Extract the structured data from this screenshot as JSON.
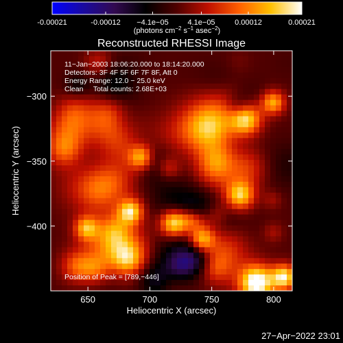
{
  "chart_data": {
    "type": "heatmap",
    "title": "Reconstructed RHESSI Image",
    "xlabel": "Heliocentric X (arcsec)",
    "ylabel": "Heliocentric Y (arcsec)",
    "xlim": [
      620,
      815
    ],
    "ylim": [
      -450,
      -265
    ],
    "x_ticks": [
      650,
      700,
      750,
      800
    ],
    "x_tick_labels": [
      "650",
      "700",
      "750",
      "800"
    ],
    "y_ticks": [
      -300,
      -350,
      -400
    ],
    "y_tick_labels": [
      "−300",
      "−350",
      "−400"
    ],
    "colorbar": {
      "range": [
        -0.00021,
        0.00021
      ],
      "ticks": [
        -0.00021,
        -0.00012,
        -4.1e-05,
        4.1e-05,
        0.00012,
        0.00021
      ],
      "tick_labels": [
        "-0.00021",
        "-0.00012",
        "−4.1e−05",
        "4.1e−05",
        "0.00012",
        "0.00021"
      ],
      "units_prefix": "(photons cm",
      "units_exp1": "−2",
      "units_mid1": " s",
      "units_exp2": "−1",
      "units_mid2": " asec",
      "units_exp3": "−2",
      "units_suffix": ")",
      "colors": [
        "#0000ff",
        "#1a0aa0",
        "#320a50",
        "#000000",
        "#500000",
        "#c01000",
        "#ff6000",
        "#ffc000",
        "#ffffff"
      ]
    },
    "annotations": [
      "11−Jan−2003 18:06:20.000 to 18:14:20.000",
      "Detectors: 3F 4F 5F 6F 7F 8F, Att 0",
      "Energy Range: 12.0 − 25.0 keV",
      "Clean     Total counts: 2.68E+03"
    ],
    "peak_label": "Position of Peak = [789,−446]",
    "peak_position": [
      789,
      -446
    ]
  },
  "footer_timestamp": "27−Apr−2022 23:01"
}
